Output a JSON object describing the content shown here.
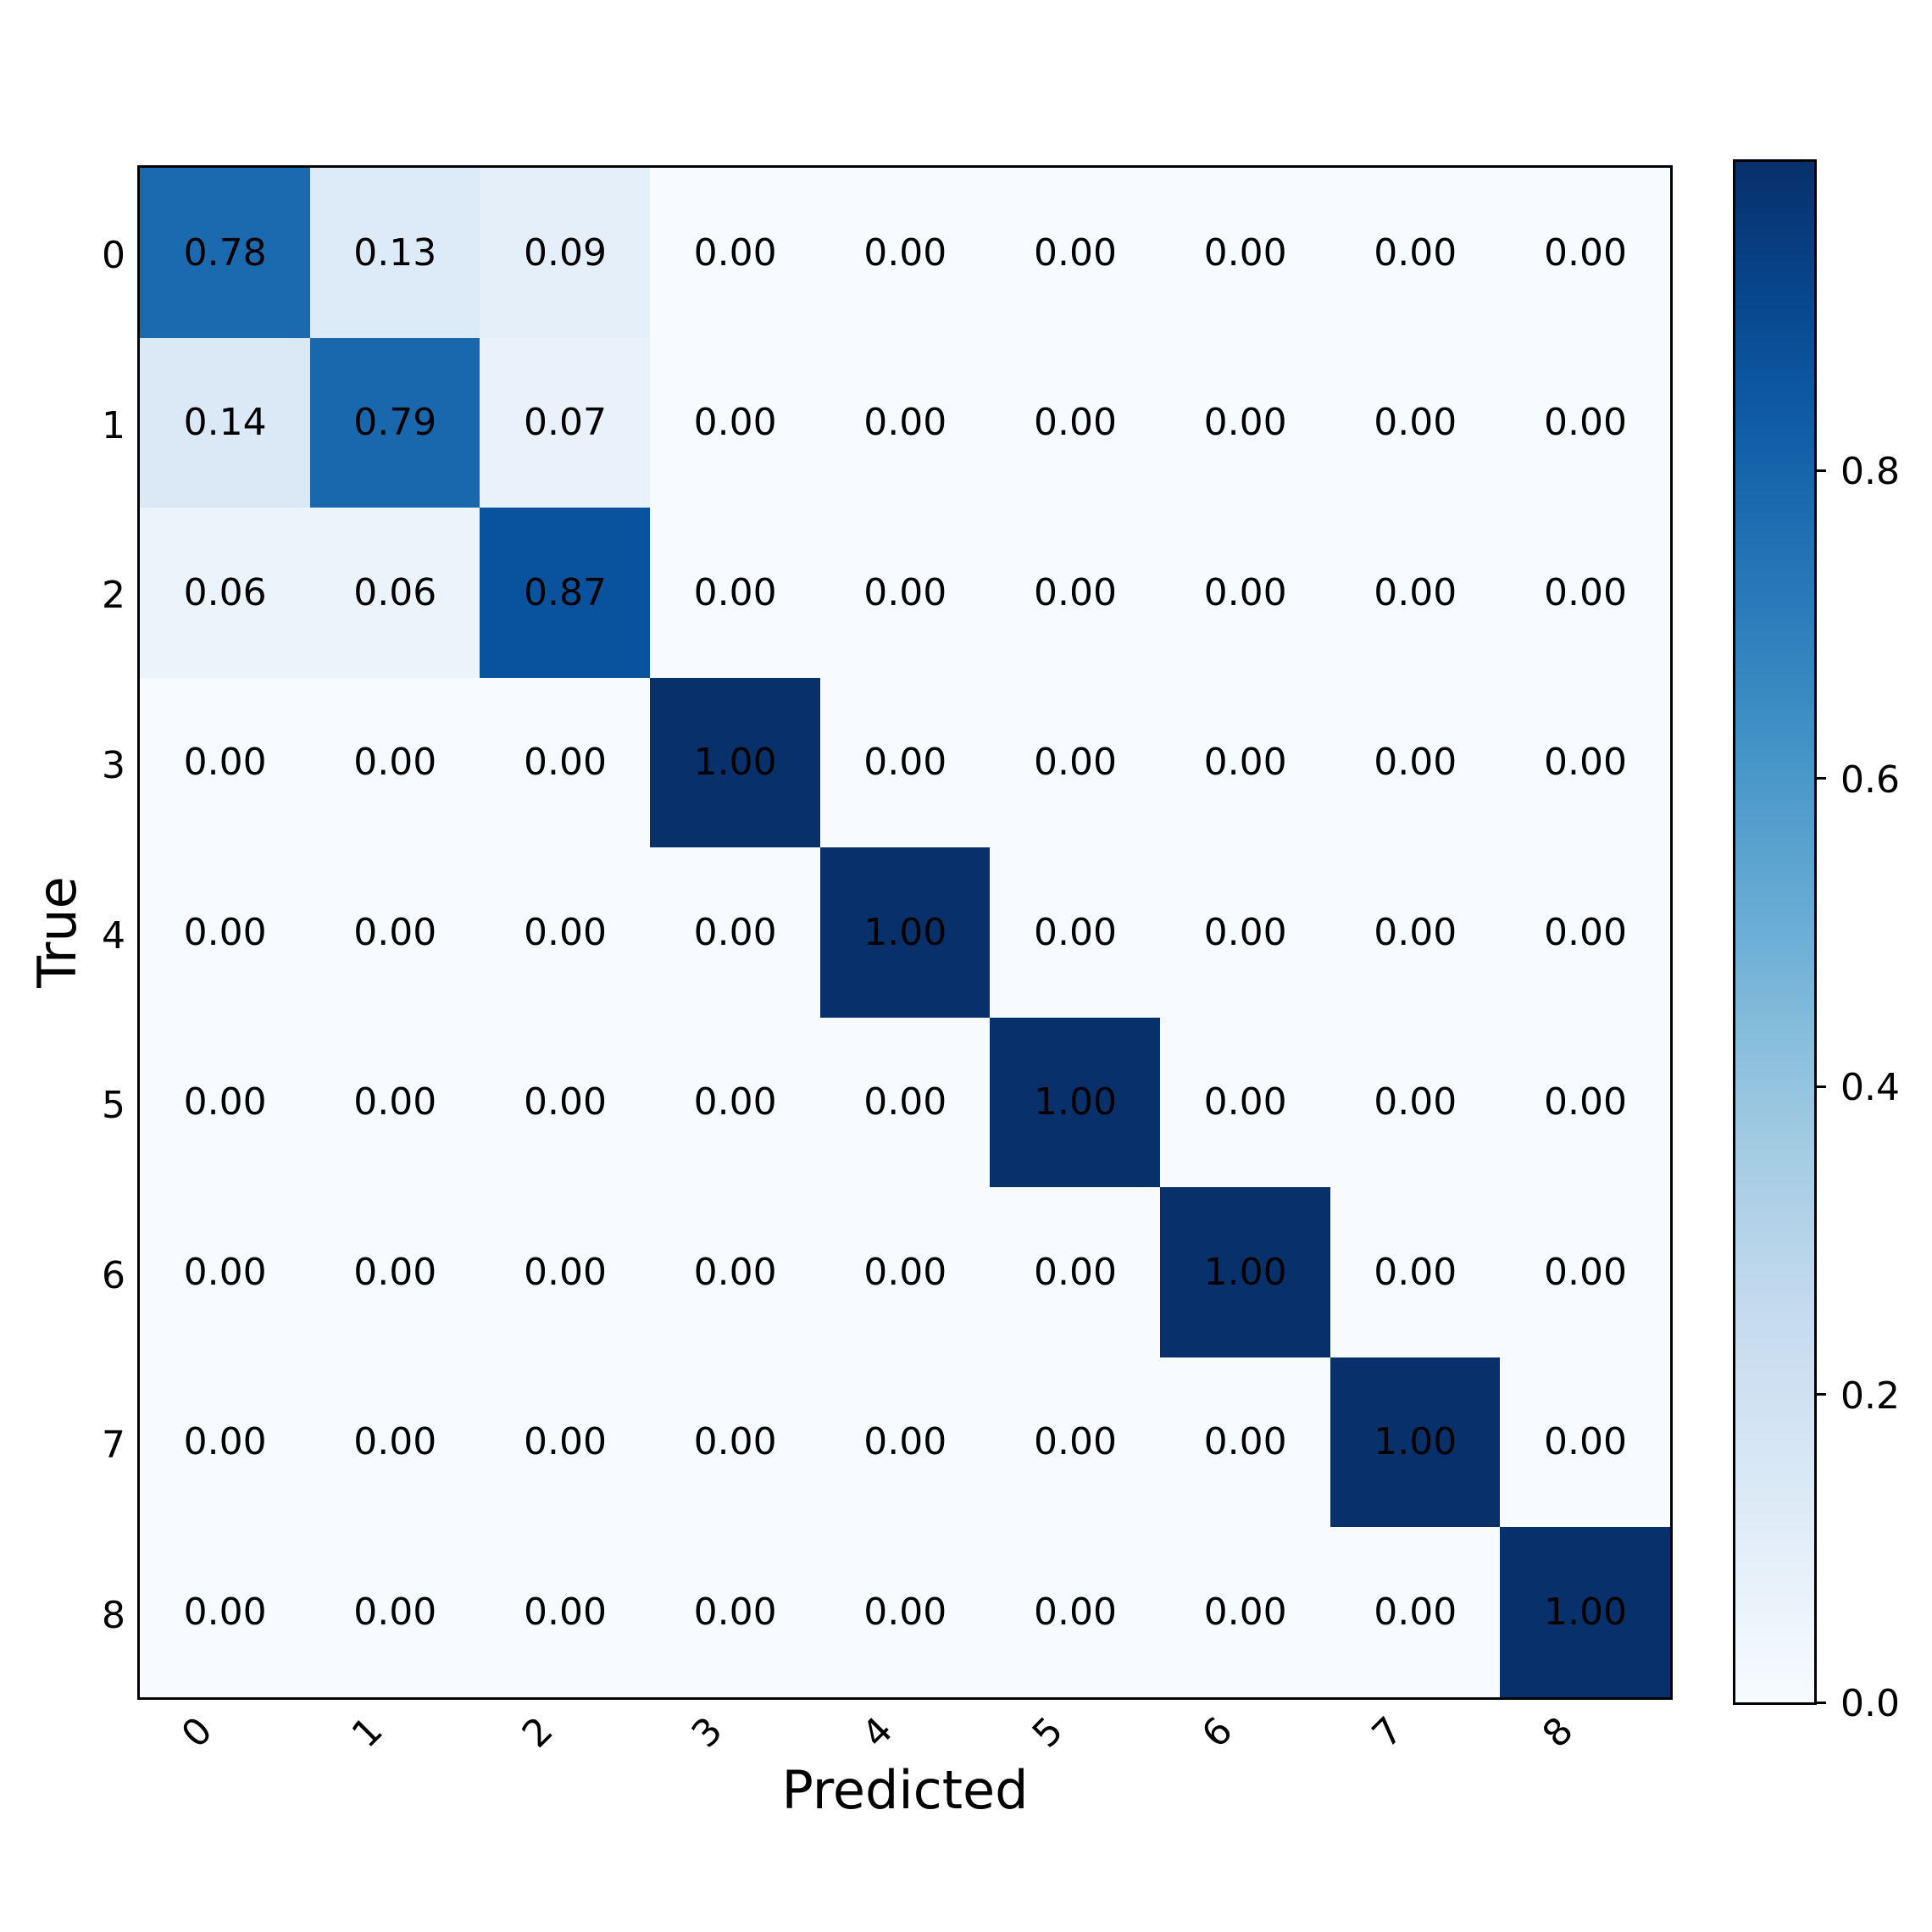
{
  "chart_data": {
    "type": "heatmap",
    "title": "",
    "xlabel": "Predicted",
    "ylabel": "True",
    "x_categories": [
      "0",
      "1",
      "2",
      "3",
      "4",
      "5",
      "6",
      "7",
      "8"
    ],
    "y_categories": [
      "0",
      "1",
      "2",
      "3",
      "4",
      "5",
      "6",
      "7",
      "8"
    ],
    "values": [
      [
        0.78,
        0.13,
        0.09,
        0.0,
        0.0,
        0.0,
        0.0,
        0.0,
        0.0
      ],
      [
        0.14,
        0.79,
        0.07,
        0.0,
        0.0,
        0.0,
        0.0,
        0.0,
        0.0
      ],
      [
        0.06,
        0.06,
        0.87,
        0.0,
        0.0,
        0.0,
        0.0,
        0.0,
        0.0
      ],
      [
        0.0,
        0.0,
        0.0,
        1.0,
        0.0,
        0.0,
        0.0,
        0.0,
        0.0
      ],
      [
        0.0,
        0.0,
        0.0,
        0.0,
        1.0,
        0.0,
        0.0,
        0.0,
        0.0
      ],
      [
        0.0,
        0.0,
        0.0,
        0.0,
        0.0,
        1.0,
        0.0,
        0.0,
        0.0
      ],
      [
        0.0,
        0.0,
        0.0,
        0.0,
        0.0,
        0.0,
        1.0,
        0.0,
        0.0
      ],
      [
        0.0,
        0.0,
        0.0,
        0.0,
        0.0,
        0.0,
        0.0,
        1.0,
        0.0
      ],
      [
        0.0,
        0.0,
        0.0,
        0.0,
        0.0,
        0.0,
        0.0,
        0.0,
        1.0
      ]
    ],
    "value_format": "0.00",
    "colormap": "Blues",
    "vmin": 0.0,
    "vmax": 1.0,
    "colorbar": {
      "ticks": [
        0.0,
        0.2,
        0.4,
        0.6,
        0.8
      ],
      "tick_labels": [
        "0.0",
        "0.2",
        "0.4",
        "0.6",
        "0.8"
      ],
      "position": "right"
    },
    "x_tick_rotation": 45,
    "grid": false
  },
  "colors": {
    "min": "#f7fbff",
    "max": "#08306b",
    "text": "#000000",
    "frame": "#000000"
  }
}
